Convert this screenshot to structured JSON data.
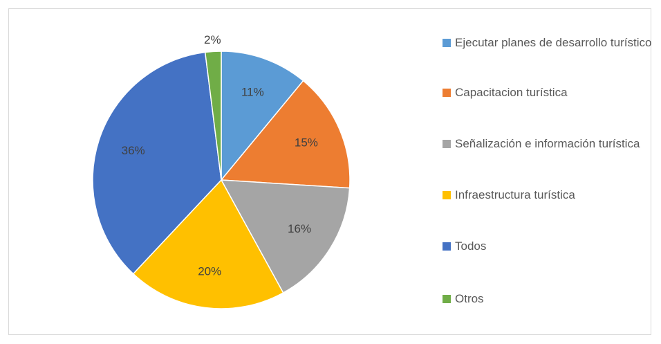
{
  "chart_data": {
    "type": "pie",
    "categories": [
      "Ejecutar planes de desarrollo turístico",
      "Capacitacion turística",
      "Señalización e información turística",
      "Infraestructura turística",
      "Todos",
      "Otros"
    ],
    "values": [
      11,
      15,
      16,
      20,
      36,
      2
    ],
    "value_labels": [
      "11%",
      "15%",
      "16%",
      "20%",
      "36%",
      "2%"
    ],
    "colors": [
      "#5b9bd5",
      "#ed7d31",
      "#a5a5a5",
      "#ffc000",
      "#4472c4",
      "#70ad47"
    ],
    "legend": "right"
  }
}
